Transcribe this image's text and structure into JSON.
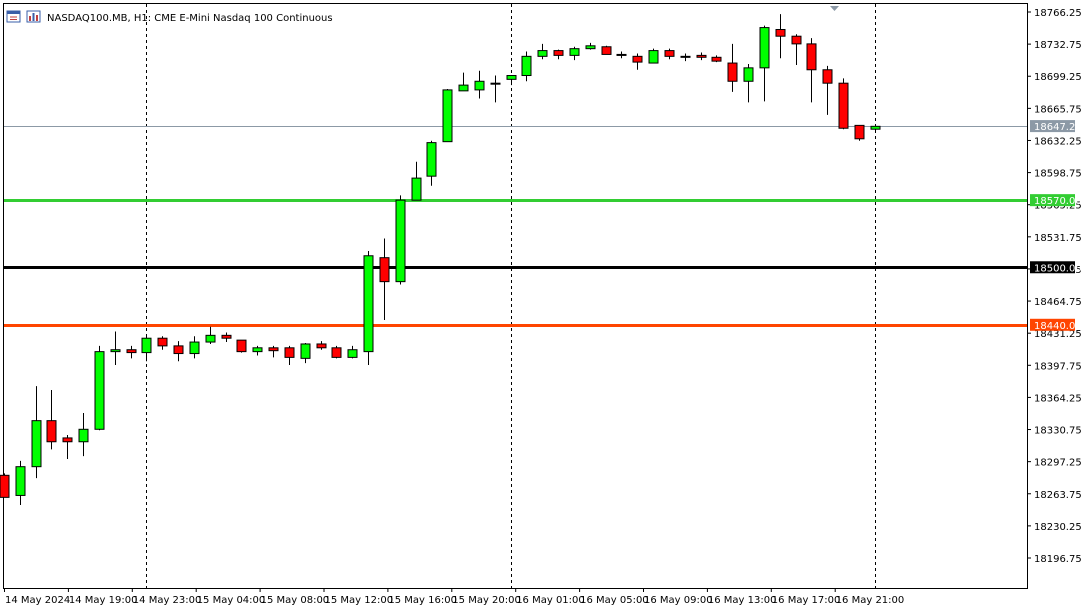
{
  "header": {
    "symbol_label": "NASDAQ100.MB, H1:  CME E-Mini Nasdaq 100 Continuous",
    "icons": [
      "window-icon",
      "chart-bars-icon"
    ]
  },
  "chart_data": {
    "type": "candlestick",
    "title": "NASDAQ100.MB, H1:  CME E-Mini Nasdaq 100 Continuous",
    "ylim": [
      18165,
      18782
    ],
    "price_ticks": [
      "18766.25",
      "18732.75",
      "18699.25",
      "18665.75",
      "18632.25",
      "18598.75",
      "18565.25",
      "18531.75",
      "18498.25",
      "18464.75",
      "18431.25",
      "18397.75",
      "18364.25",
      "18330.75",
      "18297.25",
      "18263.75",
      "18230.25",
      "18196.75"
    ],
    "time_labels": [
      "14 May 2024",
      "14 May 19:00",
      "14 May 23:00",
      "15 May 04:00",
      "15 May 08:00",
      "15 May 12:00",
      "15 May 16:00",
      "15 May 20:00",
      "16 May 01:00",
      "16 May 05:00",
      "16 May 09:00",
      "16 May 13:00",
      "16 May 17:00",
      "16 May 21:00"
    ],
    "period_separators": [
      9,
      32,
      55
    ],
    "current_price": {
      "label": "18647.25",
      "value": 18647.25,
      "color": "#8c99a6"
    },
    "levels": [
      {
        "label": "18570.00",
        "value": 18570.0,
        "color": "#32cd32"
      },
      {
        "label": "18500.00",
        "value": 18500.0,
        "color": "#000000"
      },
      {
        "label": "18440.00",
        "value": 18440.0,
        "color": "#ff4500"
      }
    ],
    "colors": {
      "bull": "#00ff00",
      "bear": "#ff0000",
      "wick": "#000000",
      "grid_sep": "#000000"
    },
    "candles": [
      {
        "o": 18283,
        "h": 18285,
        "l": 18260,
        "c": 18260
      },
      {
        "o": 18262,
        "h": 18298,
        "l": 18252,
        "c": 18292
      },
      {
        "o": 18292,
        "h": 18376,
        "l": 18280,
        "c": 18340
      },
      {
        "o": 18340,
        "h": 18372,
        "l": 18310,
        "c": 18318
      },
      {
        "o": 18322,
        "h": 18325,
        "l": 18300,
        "c": 18318
      },
      {
        "o": 18318,
        "h": 18348,
        "l": 18303,
        "c": 18331
      },
      {
        "o": 18331,
        "h": 18418,
        "l": 18330,
        "c": 18412
      },
      {
        "o": 18412,
        "h": 18433,
        "l": 18398,
        "c": 18414
      },
      {
        "o": 18414,
        "h": 18418,
        "l": 18405,
        "c": 18411
      },
      {
        "o": 18411,
        "h": 18428,
        "l": 18402,
        "c": 18426
      },
      {
        "o": 18426,
        "h": 18428,
        "l": 18414,
        "c": 18418
      },
      {
        "o": 18418,
        "h": 18423,
        "l": 18402,
        "c": 18410
      },
      {
        "o": 18410,
        "h": 18428,
        "l": 18405,
        "c": 18422
      },
      {
        "o": 18422,
        "h": 18438,
        "l": 18420,
        "c": 18429
      },
      {
        "o": 18429,
        "h": 18432,
        "l": 18422,
        "c": 18426
      },
      {
        "o": 18424,
        "h": 18424,
        "l": 18411,
        "c": 18412
      },
      {
        "o": 18412,
        "h": 18418,
        "l": 18408,
        "c": 18416
      },
      {
        "o": 18416,
        "h": 18418,
        "l": 18406,
        "c": 18413
      },
      {
        "o": 18416,
        "h": 18418,
        "l": 18398,
        "c": 18406
      },
      {
        "o": 18405,
        "h": 18421,
        "l": 18400,
        "c": 18420
      },
      {
        "o": 18420,
        "h": 18423,
        "l": 18414,
        "c": 18416
      },
      {
        "o": 18416,
        "h": 18418,
        "l": 18405,
        "c": 18406
      },
      {
        "o": 18406,
        "h": 18418,
        "l": 18405,
        "c": 18414
      },
      {
        "o": 18412,
        "h": 18517,
        "l": 18398,
        "c": 18512
      },
      {
        "o": 18510,
        "h": 18530,
        "l": 18445,
        "c": 18485
      },
      {
        "o": 18485,
        "h": 18575,
        "l": 18482,
        "c": 18570
      },
      {
        "o": 18570,
        "h": 18610,
        "l": 18570,
        "c": 18593
      },
      {
        "o": 18595,
        "h": 18632,
        "l": 18585,
        "c": 18630
      },
      {
        "o": 18631,
        "h": 18686,
        "l": 18631,
        "c": 18685
      },
      {
        "o": 18684,
        "h": 18703,
        "l": 18684,
        "c": 18690
      },
      {
        "o": 18685,
        "h": 18705,
        "l": 18676,
        "c": 18694
      },
      {
        "o": 18692,
        "h": 18700,
        "l": 18672,
        "c": 18692
      },
      {
        "o": 18696,
        "h": 18700,
        "l": 18690,
        "c": 18700
      },
      {
        "o": 18700,
        "h": 18725,
        "l": 18694,
        "c": 18720
      },
      {
        "o": 18720,
        "h": 18733,
        "l": 18717,
        "c": 18726
      },
      {
        "o": 18726,
        "h": 18727,
        "l": 18717,
        "c": 18721
      },
      {
        "o": 18721,
        "h": 18730,
        "l": 18716,
        "c": 18728
      },
      {
        "o": 18728,
        "h": 18734,
        "l": 18727,
        "c": 18731
      },
      {
        "o": 18730,
        "h": 18731,
        "l": 18722,
        "c": 18722
      },
      {
        "o": 18722,
        "h": 18725,
        "l": 18718,
        "c": 18721
      },
      {
        "o": 18720,
        "h": 18723,
        "l": 18706,
        "c": 18714
      },
      {
        "o": 18713,
        "h": 18728,
        "l": 18713,
        "c": 18726
      },
      {
        "o": 18726,
        "h": 18728,
        "l": 18717,
        "c": 18720
      },
      {
        "o": 18719,
        "h": 18723,
        "l": 18715,
        "c": 18720
      },
      {
        "o": 18721,
        "h": 18724,
        "l": 18716,
        "c": 18719
      },
      {
        "o": 18719,
        "h": 18721,
        "l": 18714,
        "c": 18715
      },
      {
        "o": 18713,
        "h": 18733,
        "l": 18683,
        "c": 18694
      },
      {
        "o": 18694,
        "h": 18712,
        "l": 18672,
        "c": 18708
      },
      {
        "o": 18708,
        "h": 18752,
        "l": 18673,
        "c": 18750
      },
      {
        "o": 18748,
        "h": 18764,
        "l": 18718,
        "c": 18741
      },
      {
        "o": 18741,
        "h": 18743,
        "l": 18711,
        "c": 18733
      },
      {
        "o": 18733,
        "h": 18739,
        "l": 18672,
        "c": 18706
      },
      {
        "o": 18706,
        "h": 18710,
        "l": 18659,
        "c": 18692
      },
      {
        "o": 18692,
        "h": 18697,
        "l": 18644,
        "c": 18645
      },
      {
        "o": 18648,
        "h": 18648,
        "l": 18632,
        "c": 18634
      },
      {
        "o": 18644,
        "h": 18649,
        "l": 18642,
        "c": 18647
      }
    ]
  }
}
